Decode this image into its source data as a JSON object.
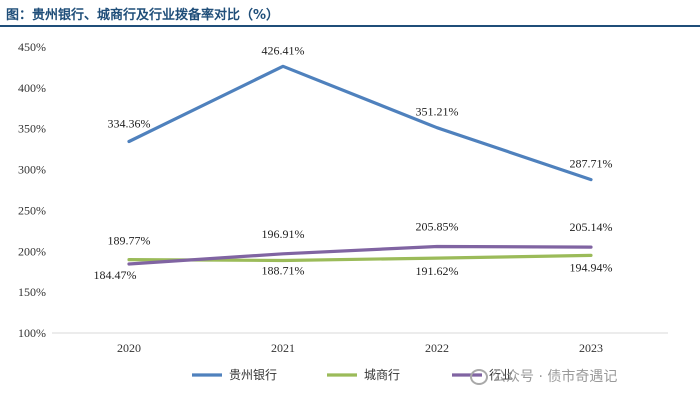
{
  "title": "图：贵州银行、城商行及行业拨备率对比（%）",
  "watermark": "公众号 · 债市奇遇记",
  "chart_data": {
    "type": "line",
    "categories": [
      "2020",
      "2021",
      "2022",
      "2023"
    ],
    "ylim": [
      100,
      450
    ],
    "yticks": [
      100,
      150,
      200,
      250,
      300,
      350,
      400,
      450
    ],
    "ytick_suffix": "%",
    "grid": false,
    "legend_position": "bottom",
    "series": [
      {
        "name": "贵州银行",
        "color": "#4f81bd",
        "values": [
          334.36,
          426.41,
          351.21,
          287.71
        ],
        "labels": [
          "334.36%",
          "426.41%",
          "351.21%",
          "287.71%"
        ]
      },
      {
        "name": "城商行",
        "color": "#9bbb59",
        "values": [
          189.77,
          188.71,
          191.62,
          194.94
        ],
        "labels": [
          "189.77%",
          "188.71%",
          "191.62%",
          "194.94%"
        ]
      },
      {
        "name": "行业",
        "color": "#8064a2",
        "values": [
          184.47,
          196.91,
          205.85,
          205.14
        ],
        "labels": [
          "184.47%",
          "196.91%",
          "205.85%",
          "205.14%"
        ]
      }
    ]
  }
}
